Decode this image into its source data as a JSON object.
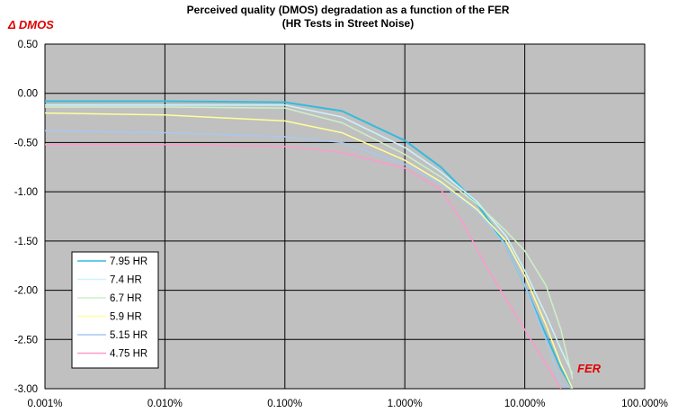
{
  "chart_data": {
    "type": "line",
    "title": "Perceived quality (DMOS) degradation as a function of the FER",
    "subtitle": "(HR Tests in Street Noise)",
    "ylabel": "Δ DMOS",
    "xlabel": "FER",
    "x_scale": "log",
    "xlim": [
      0.001,
      100
    ],
    "ylim": [
      -3.0,
      0.5
    ],
    "x_tick_values": [
      0.001,
      0.01,
      0.1,
      1,
      10,
      100
    ],
    "x_tick_labels": [
      "0.001%",
      "0.010%",
      "0.100%",
      "1.000%",
      "10.000%",
      "100.000%"
    ],
    "y_tick_values": [
      0.5,
      0.0,
      -0.5,
      -1.0,
      -1.5,
      -2.0,
      -2.5,
      -3.0
    ],
    "y_tick_labels": [
      "0.50",
      "0.00",
      "-0.50",
      "-1.00",
      "-1.50",
      "-2.00",
      "-2.50",
      "-3.00"
    ],
    "grid": true,
    "legend_position": "lower-left",
    "plot_background": "#c0c0c0",
    "series": [
      {
        "name": "7.95 HR",
        "color": "#33bbdd",
        "x": [
          0.001,
          0.01,
          0.1,
          0.3,
          1,
          2,
          4,
          7,
          10,
          15,
          20,
          25
        ],
        "y": [
          -0.08,
          -0.08,
          -0.09,
          -0.18,
          -0.48,
          -0.75,
          -1.12,
          -1.55,
          -1.95,
          -2.45,
          -2.8,
          -3.0
        ]
      },
      {
        "name": "7.4 HR",
        "color": "#ccf4ff",
        "x": [
          0.001,
          0.01,
          0.1,
          0.3,
          1,
          2,
          4,
          7,
          10,
          15,
          20,
          25
        ],
        "y": [
          -0.12,
          -0.12,
          -0.12,
          -0.24,
          -0.55,
          -0.8,
          -1.1,
          -1.45,
          -1.8,
          -2.25,
          -2.6,
          -2.85
        ]
      },
      {
        "name": "6.7 HR",
        "color": "#ccf0c8",
        "x": [
          0.001,
          0.01,
          0.1,
          0.3,
          1,
          2,
          4,
          7,
          10,
          15,
          20,
          25
        ],
        "y": [
          -0.14,
          -0.14,
          -0.15,
          -0.3,
          -0.62,
          -0.85,
          -1.12,
          -1.4,
          -1.6,
          -1.95,
          -2.4,
          -2.9
        ]
      },
      {
        "name": "5.9 HR",
        "color": "#ffff99",
        "x": [
          0.001,
          0.01,
          0.1,
          0.3,
          1,
          2,
          4,
          7,
          10,
          15,
          20,
          25
        ],
        "y": [
          -0.2,
          -0.22,
          -0.28,
          -0.4,
          -0.68,
          -0.9,
          -1.18,
          -1.5,
          -1.85,
          -2.35,
          -2.75,
          -3.0
        ]
      },
      {
        "name": "5.15 HR",
        "color": "#a8c8f0",
        "x": [
          0.001,
          0.01,
          0.1,
          0.3,
          1,
          2,
          4,
          7,
          10,
          15,
          20,
          25
        ],
        "y": [
          -0.38,
          -0.4,
          -0.44,
          -0.5,
          -0.72,
          -0.92,
          -1.2,
          -1.55,
          -1.95,
          -2.5,
          -2.95,
          -3.0
        ]
      },
      {
        "name": "4.75 HR",
        "color": "#ff99cc",
        "x": [
          0.001,
          0.01,
          0.1,
          0.3,
          1,
          2,
          3,
          5,
          10,
          15,
          20
        ],
        "y": [
          -0.52,
          -0.52,
          -0.54,
          -0.6,
          -0.76,
          -0.98,
          -1.3,
          -1.8,
          -2.4,
          -2.75,
          -3.0
        ]
      }
    ]
  }
}
